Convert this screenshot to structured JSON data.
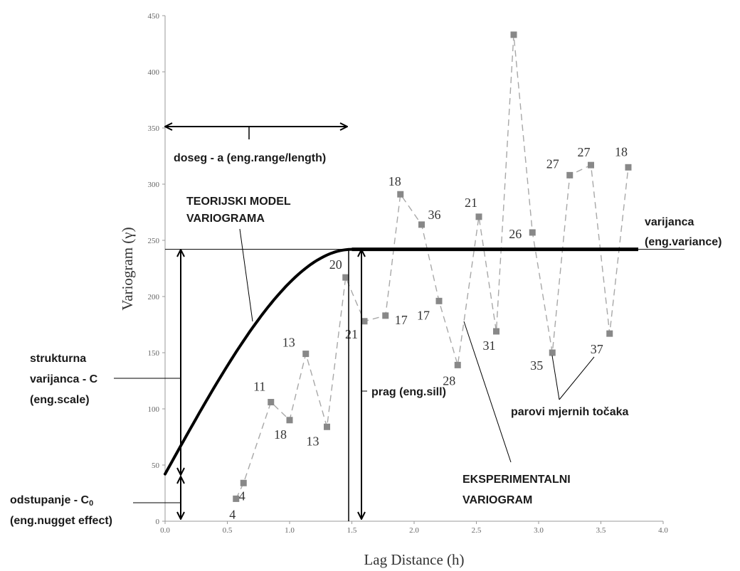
{
  "chart_data": {
    "type": "scatter",
    "xlabel": "Lag Distance (h)",
    "ylabel": "Variogram (γ)",
    "xlim": [
      0,
      4
    ],
    "ylim": [
      0,
      450
    ],
    "x_ticks": [
      "0.0",
      "0.5",
      "1.0",
      "1.5",
      "2.0",
      "2.5",
      "3.0",
      "3.5",
      "4.0"
    ],
    "y_ticks": [
      "0",
      "50",
      "100",
      "150",
      "200",
      "250",
      "300",
      "350",
      "400",
      "450"
    ],
    "grid": false,
    "experimental": {
      "points": [
        {
          "x": 0.57,
          "y": 20,
          "label": "4"
        },
        {
          "x": 0.63,
          "y": 34,
          "label": "4"
        },
        {
          "x": 0.85,
          "y": 106,
          "label": "11"
        },
        {
          "x": 1.0,
          "y": 90,
          "label": "18"
        },
        {
          "x": 1.13,
          "y": 149,
          "label": "13"
        },
        {
          "x": 1.3,
          "y": 84,
          "label": "13"
        },
        {
          "x": 1.45,
          "y": 217,
          "label": "20"
        },
        {
          "x": 1.6,
          "y": 178,
          "label": "21"
        },
        {
          "x": 1.77,
          "y": 183,
          "label": "17"
        },
        {
          "x": 1.89,
          "y": 291,
          "label": "18"
        },
        {
          "x": 2.06,
          "y": 264,
          "label": "36"
        },
        {
          "x": 2.2,
          "y": 196,
          "label": "17"
        },
        {
          "x": 2.35,
          "y": 139,
          "label": "28"
        },
        {
          "x": 2.52,
          "y": 271,
          "label": "21"
        },
        {
          "x": 2.66,
          "y": 169,
          "label": "31"
        },
        {
          "x": 2.8,
          "y": 433,
          "label": ""
        },
        {
          "x": 2.95,
          "y": 257,
          "label": "26"
        },
        {
          "x": 3.11,
          "y": 150,
          "label": "35"
        },
        {
          "x": 3.25,
          "y": 308,
          "label": "27"
        },
        {
          "x": 3.42,
          "y": 317,
          "label": "27"
        },
        {
          "x": 3.57,
          "y": 167,
          "label": "37"
        },
        {
          "x": 3.72,
          "y": 315,
          "label": "18"
        }
      ]
    },
    "model": {
      "nugget": 42,
      "sill": 242,
      "range": 1.5,
      "x_end": 3.8
    },
    "annotations": {
      "range": "doseg - a (eng.range/length)",
      "model_line1": "TEORIJSKI MODEL",
      "model_line2": "VARIOGRAMA",
      "variance_line1": "varijanca",
      "variance_line2": "(eng.variance)",
      "scale_line1": "strukturna",
      "scale_line2": "varijanca - C",
      "scale_line3": "(eng.scale)",
      "sill": "prag (eng.sill)",
      "pairs": "parovi mjernih točaka",
      "experimental_line1": "EKSPERIMENTALNI",
      "experimental_line2": "VARIOGRAM",
      "nugget_line1": "odstupanje - C",
      "nugget_subscript": "0",
      "nugget_line2": "(eng.nugget effect)"
    },
    "colors": {
      "model": "#000000",
      "points": "#888888",
      "dashes": "#a8a8a8",
      "axis": "#9a9a9a"
    }
  }
}
